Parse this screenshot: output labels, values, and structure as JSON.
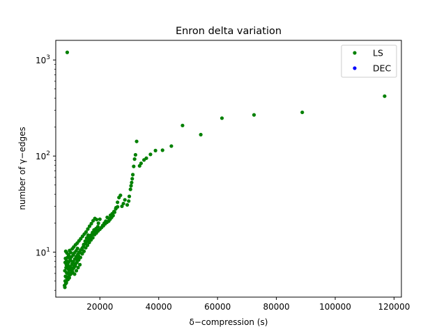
{
  "chart_data": {
    "type": "scatter",
    "title": "Enron delta variation",
    "xlabel": "δ−compression (s)",
    "ylabel": "number of γ−edges",
    "xlim": [
      5000,
      122500
    ],
    "ylim": [
      3.4,
      1600
    ],
    "y_scale": "log",
    "grid": false,
    "legend_placement": "top-right",
    "x_ticks": [
      {
        "value": 20000,
        "label": "20000"
      },
      {
        "value": 40000,
        "label": "40000"
      },
      {
        "value": 60000,
        "label": "60000"
      },
      {
        "value": 80000,
        "label": "80000"
      },
      {
        "value": 100000,
        "label": "100000"
      },
      {
        "value": 120000,
        "label": "120000"
      }
    ],
    "y_ticks": [
      {
        "value": 10,
        "base": "10",
        "exp": "1"
      },
      {
        "value": 100,
        "base": "10",
        "exp": "2"
      },
      {
        "value": 1000,
        "base": "10",
        "exp": "3"
      }
    ],
    "series": [
      {
        "name": "LS",
        "color": "#008000",
        "points": [
          [
            8900,
            1200
          ],
          [
            116800,
            420
          ],
          [
            88800,
            285
          ],
          [
            72400,
            268
          ],
          [
            61500,
            248
          ],
          [
            54300,
            167
          ],
          [
            48100,
            208
          ],
          [
            44300,
            127
          ],
          [
            41300,
            115
          ],
          [
            38900,
            114
          ],
          [
            37200,
            104
          ],
          [
            35800,
            95
          ],
          [
            35000,
            91
          ],
          [
            34000,
            84
          ],
          [
            33500,
            79
          ],
          [
            32500,
            142
          ],
          [
            32100,
            103
          ],
          [
            31800,
            93
          ],
          [
            31500,
            78
          ],
          [
            31200,
            64
          ],
          [
            31000,
            58
          ],
          [
            30800,
            53
          ],
          [
            30600,
            49
          ],
          [
            30400,
            45
          ],
          [
            30000,
            38
          ],
          [
            29800,
            34
          ],
          [
            29300,
            31
          ],
          [
            28500,
            35
          ],
          [
            28000,
            32
          ],
          [
            27500,
            30
          ],
          [
            27000,
            39
          ],
          [
            26500,
            37
          ],
          [
            26000,
            33
          ],
          [
            25500,
            29
          ],
          [
            25000,
            26
          ],
          [
            24500,
            24
          ],
          [
            24000,
            23
          ],
          [
            23500,
            22
          ],
          [
            23000,
            21
          ],
          [
            22500,
            23
          ],
          [
            22000,
            21
          ],
          [
            21500,
            20
          ],
          [
            21000,
            19
          ],
          [
            20500,
            18
          ],
          [
            20000,
            22
          ],
          [
            19500,
            20
          ],
          [
            19000,
            17
          ],
          [
            18500,
            16
          ],
          [
            18000,
            17
          ],
          [
            17500,
            16
          ],
          [
            17000,
            15
          ],
          [
            16500,
            14
          ],
          [
            16000,
            15
          ],
          [
            15500,
            14
          ],
          [
            15000,
            13
          ],
          [
            14500,
            12
          ],
          [
            14000,
            11
          ],
          [
            13500,
            10.5
          ],
          [
            13000,
            10
          ],
          [
            12500,
            9.5
          ],
          [
            12000,
            9
          ],
          [
            11500,
            8.5
          ],
          [
            11000,
            8
          ],
          [
            10500,
            7.5
          ],
          [
            10000,
            7
          ],
          [
            9500,
            6.5
          ],
          [
            9000,
            6
          ],
          [
            8500,
            5.5
          ],
          [
            8200,
            5
          ],
          [
            8000,
            4.5
          ],
          [
            8600,
            4.8
          ],
          [
            9200,
            5.2
          ],
          [
            9800,
            5.8
          ],
          [
            10400,
            6.2
          ],
          [
            11000,
            6.8
          ],
          [
            11600,
            7.2
          ],
          [
            12200,
            7.8
          ],
          [
            12800,
            8.3
          ],
          [
            13400,
            8.8
          ],
          [
            14000,
            9.6
          ],
          [
            14600,
            10.2
          ],
          [
            15200,
            11.1
          ],
          [
            15800,
            11.8
          ],
          [
            16400,
            12.6
          ],
          [
            17000,
            13.4
          ],
          [
            17600,
            14.1
          ],
          [
            18200,
            15.2
          ],
          [
            18800,
            15.8
          ],
          [
            19400,
            16.6
          ],
          [
            20000,
            17.3
          ],
          [
            20600,
            18.1
          ],
          [
            21200,
            18.8
          ],
          [
            21800,
            19.7
          ],
          [
            22400,
            20.4
          ],
          [
            23000,
            22.5
          ],
          [
            23600,
            24.2
          ],
          [
            24200,
            25.1
          ],
          [
            24800,
            26.4
          ],
          [
            25400,
            28.2
          ],
          [
            26000,
            29.6
          ],
          [
            8400,
            10.2
          ],
          [
            8800,
            9.8
          ],
          [
            9300,
            9.4
          ],
          [
            9700,
            10.4
          ],
          [
            10100,
            9.9
          ],
          [
            10600,
            10.8
          ],
          [
            11100,
            11.3
          ],
          [
            11700,
            11.9
          ],
          [
            12300,
            12.4
          ],
          [
            12900,
            13.1
          ],
          [
            13500,
            13.8
          ],
          [
            14100,
            14.6
          ],
          [
            14700,
            15.4
          ],
          [
            15300,
            16.2
          ],
          [
            15900,
            17.4
          ],
          [
            16500,
            18.6
          ],
          [
            17100,
            19.8
          ],
          [
            17700,
            21.2
          ],
          [
            18300,
            22.4
          ],
          [
            18900,
            21.8
          ],
          [
            8300,
            8.6
          ],
          [
            8700,
            8.1
          ],
          [
            9100,
            7.6
          ],
          [
            9600,
            7.1
          ],
          [
            10200,
            6.6
          ],
          [
            10800,
            6.1
          ],
          [
            11400,
            5.9
          ],
          [
            12000,
            6.4
          ],
          [
            12600,
            6.9
          ],
          [
            13200,
            7.4
          ],
          [
            8100,
            6.4
          ],
          [
            8500,
            6.9
          ],
          [
            8900,
            7.3
          ],
          [
            9400,
            7.9
          ],
          [
            9900,
            8.4
          ],
          [
            10300,
            8.9
          ],
          [
            10900,
            9.3
          ],
          [
            11300,
            9.8
          ],
          [
            11900,
            10.3
          ],
          [
            12400,
            10.9
          ],
          [
            8200,
            7.8
          ],
          [
            8600,
            7.4
          ],
          [
            9000,
            8.8
          ],
          [
            9500,
            9.1
          ],
          [
            10000,
            8.2
          ],
          [
            10700,
            7.7
          ],
          [
            11200,
            7.1
          ],
          [
            11800,
            8.6
          ],
          [
            12700,
            9.2
          ],
          [
            13300,
            9.9
          ],
          [
            13900,
            10.7
          ],
          [
            14400,
            11.4
          ],
          [
            15100,
            12.2
          ],
          [
            15700,
            12.9
          ],
          [
            16300,
            13.7
          ],
          [
            16900,
            14.4
          ],
          [
            17400,
            15.3
          ],
          [
            18100,
            16.3
          ],
          [
            18700,
            17.6
          ],
          [
            19300,
            18.4
          ],
          [
            8300,
            5.6
          ],
          [
            8700,
            6.1
          ],
          [
            9200,
            6.7
          ],
          [
            9600,
            5.4
          ],
          [
            10100,
            5.9
          ],
          [
            10600,
            6.4
          ],
          [
            11200,
            6.9
          ],
          [
            11700,
            7.5
          ],
          [
            12300,
            8.1
          ],
          [
            12900,
            8.7
          ],
          [
            8100,
            4.3
          ],
          [
            8400,
            4.7
          ],
          [
            8800,
            5.1
          ],
          [
            9100,
            5.5
          ],
          [
            9500,
            6.0
          ]
        ]
      },
      {
        "name": "DEC",
        "color": "#0000ff",
        "points": []
      }
    ]
  }
}
